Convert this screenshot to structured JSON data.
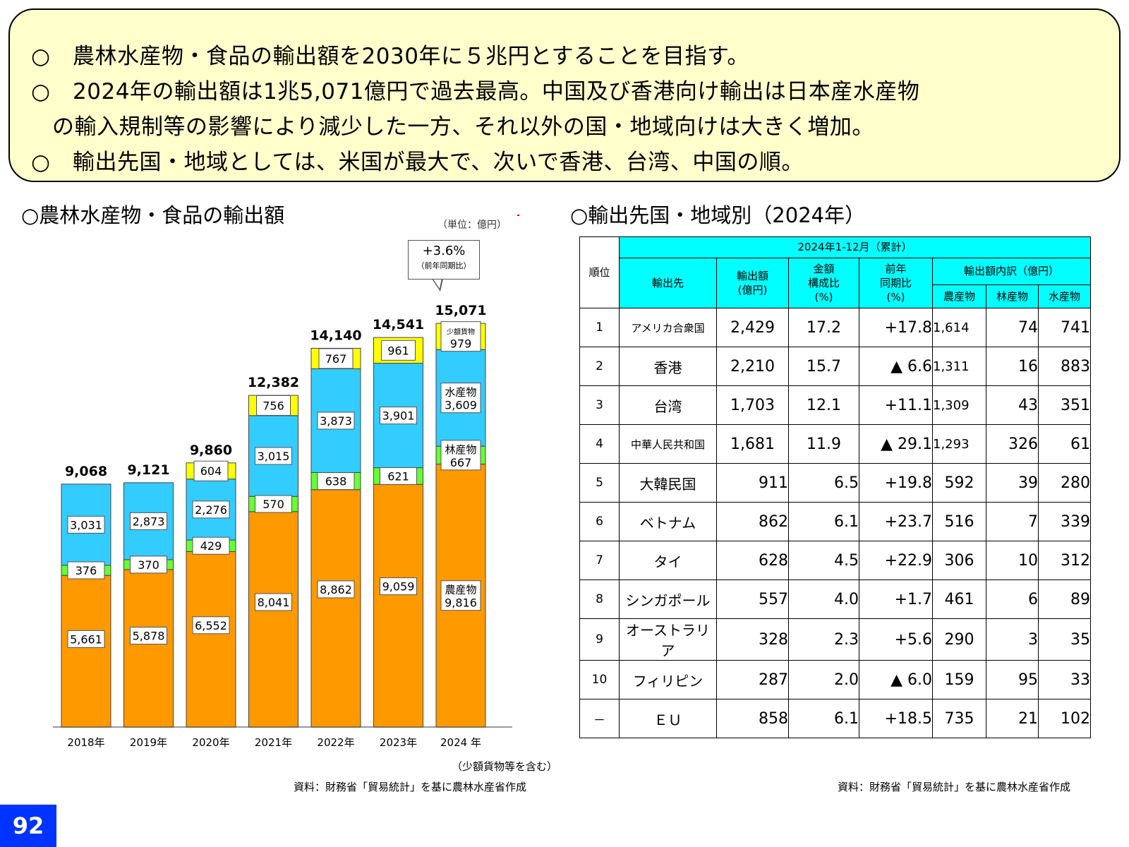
{
  "callout": {
    "lines": [
      "○　農林水産物・食品の輸出額を2030年に５兆円とすることを目指す。",
      "○　2024年の輸出額は1兆5,071億円で過去最高。中国及び香港向け輸出は日本産水産物",
      "の輸入規制等の影響により減少した一方、それ以外の国・地域向けは大きく増加。",
      "○　輸出先国・地域としては、米国が最大で、次いで香港、台湾、中国の順。"
    ]
  },
  "left_title": "○農林水産物・食品の輸出額",
  "right_title": "○輸出先国・地域別（2024年）",
  "unit_note": "（単位：億円）",
  "annotation": {
    "growth": "+3.6%",
    "basis": "（前年同期比）"
  },
  "note_small_cargo": "（少額貨物等を含む）",
  "source_left": "資料：財務省「貿易統計」を基に農林水産省作成",
  "source_right": "資料：財務省「貿易統計」を基に農林水産省作成",
  "page_number": "92",
  "chart_data": {
    "type": "bar",
    "stacked": true,
    "categories": [
      "2018年",
      "2019年",
      "2020年",
      "2021年",
      "2022年",
      "2023年",
      "2024 年"
    ],
    "totals": [
      "9,068",
      "9,121",
      "9,860",
      "12,382",
      "14,140",
      "14,541",
      "15,071"
    ],
    "series": [
      {
        "key": "agri",
        "name": "農産物",
        "color": "#ff9900",
        "values": [
          5661,
          5878,
          6552,
          8041,
          8862,
          9059,
          9816
        ]
      },
      {
        "key": "forest",
        "name": "林産物",
        "color": "#66ff33",
        "values": [
          376,
          370,
          429,
          570,
          638,
          621,
          667
        ]
      },
      {
        "key": "fish",
        "name": "水産物",
        "color": "#33ccff",
        "values": [
          3031,
          2873,
          2276,
          3015,
          3873,
          3901,
          3609
        ]
      },
      {
        "key": "small",
        "name": "少額貨物",
        "color": "#ffff00",
        "values": [
          0,
          0,
          604,
          756,
          767,
          961,
          979
        ]
      }
    ],
    "ylim": [
      0,
      16000
    ],
    "grid": false
  },
  "table": {
    "period": "2024年1-12月（累計）",
    "headers": {
      "rank": "順位",
      "dest": "輸出先",
      "amount": "輸出額\n(億円)",
      "share": "金額\n構成比\n(%)",
      "yoy": "前年\n同期比\n(%)",
      "breakdown": "輸出額内訳（億円）",
      "agri": "農産物",
      "forest": "林産物",
      "fish": "水産物"
    },
    "rows": [
      {
        "rank": "1",
        "dest": "アメリカ合衆国",
        "amount": "2,429",
        "share": "17.2",
        "yoy": "+17.8",
        "agri": "1,614",
        "forest": "74",
        "fish": "741"
      },
      {
        "rank": "2",
        "dest": "香港",
        "amount": "2,210",
        "share": "15.7",
        "yoy": "▲ 6.6",
        "agri": "1,311",
        "forest": "16",
        "fish": "883"
      },
      {
        "rank": "3",
        "dest": "台湾",
        "amount": "1,703",
        "share": "12.1",
        "yoy": "+11.1",
        "agri": "1,309",
        "forest": "43",
        "fish": "351"
      },
      {
        "rank": "4",
        "dest": "中華人民共和国",
        "amount": "1,681",
        "share": "11.9",
        "yoy": "▲ 29.1",
        "agri": "1,293",
        "forest": "326",
        "fish": "61"
      },
      {
        "rank": "5",
        "dest": "大韓民国",
        "amount": "911",
        "share": "6.5",
        "yoy": "+19.8",
        "agri": "592",
        "forest": "39",
        "fish": "280"
      },
      {
        "rank": "6",
        "dest": "ベトナム",
        "amount": "862",
        "share": "6.1",
        "yoy": "+23.7",
        "agri": "516",
        "forest": "7",
        "fish": "339"
      },
      {
        "rank": "7",
        "dest": "タイ",
        "amount": "628",
        "share": "4.5",
        "yoy": "+22.9",
        "agri": "306",
        "forest": "10",
        "fish": "312"
      },
      {
        "rank": "8",
        "dest": "シンガポール",
        "amount": "557",
        "share": "4.0",
        "yoy": "+1.7",
        "agri": "461",
        "forest": "6",
        "fish": "89"
      },
      {
        "rank": "9",
        "dest": "オーストラリア",
        "amount": "328",
        "share": "2.3",
        "yoy": "+5.6",
        "agri": "290",
        "forest": "3",
        "fish": "35"
      },
      {
        "rank": "10",
        "dest": "フィリピン",
        "amount": "287",
        "share": "2.0",
        "yoy": "▲ 6.0",
        "agri": "159",
        "forest": "95",
        "fish": "33"
      },
      {
        "rank": "－",
        "dest": "ＥＵ",
        "amount": "858",
        "share": "6.1",
        "yoy": "+18.5",
        "agri": "735",
        "forest": "21",
        "fish": "102"
      }
    ]
  }
}
